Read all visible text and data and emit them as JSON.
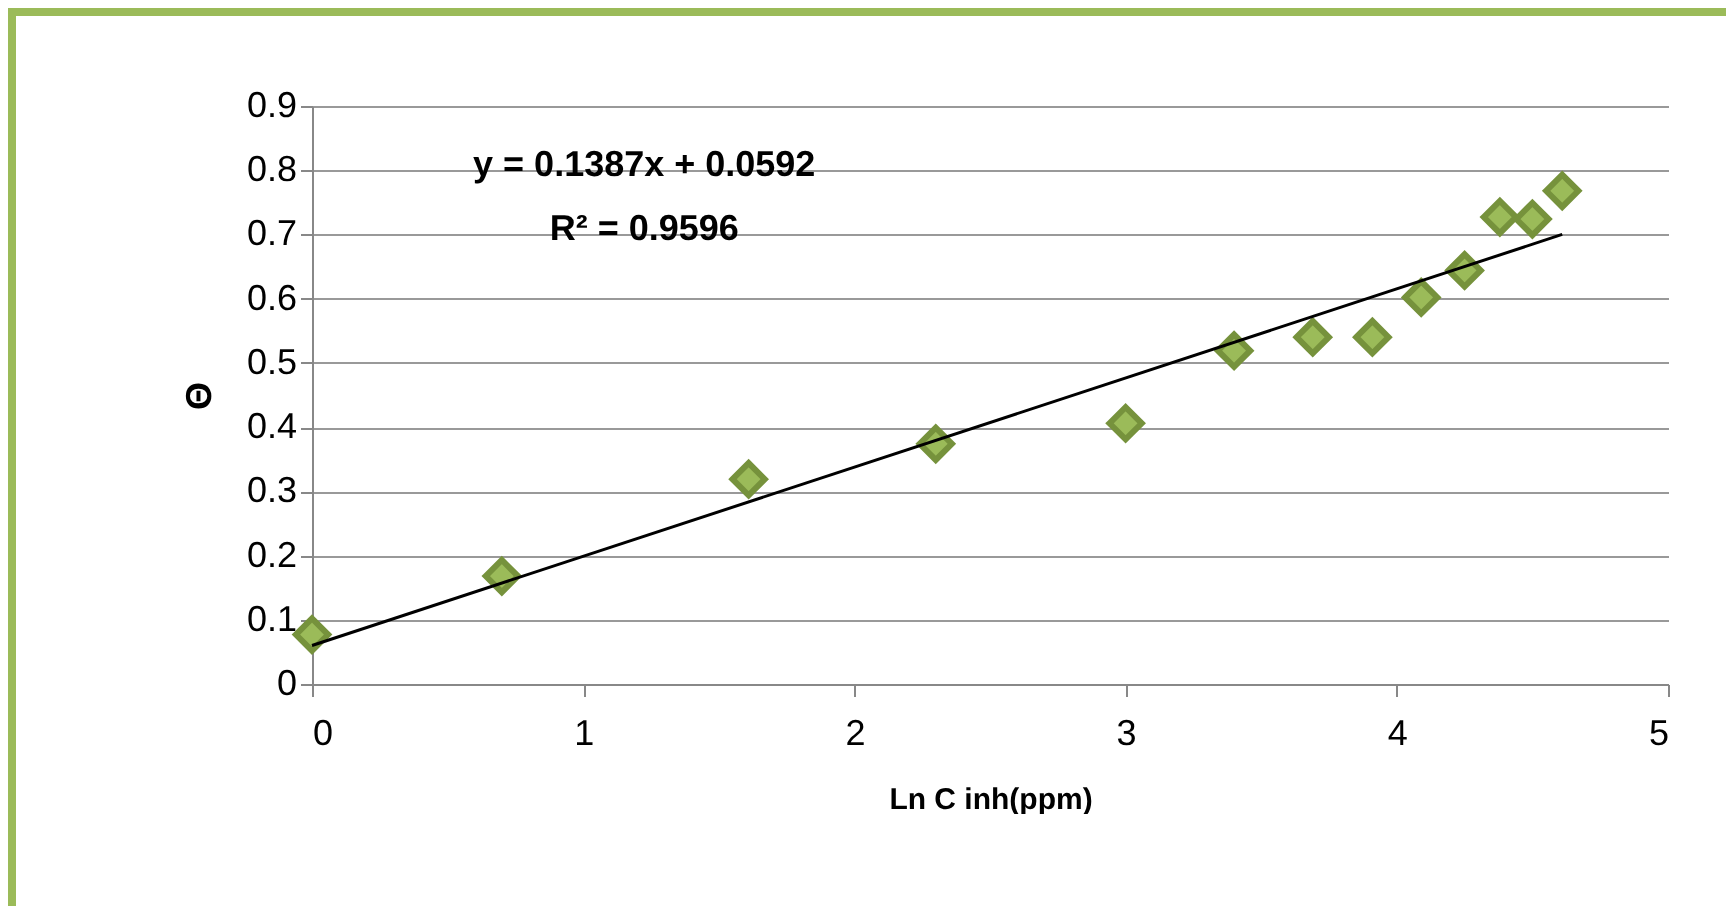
{
  "chart_data": {
    "type": "scatter",
    "xlabel": "Ln  C inh(ppm)",
    "ylabel": "Θ",
    "xlim": [
      0,
      5
    ],
    "xticks": [
      0,
      1,
      2,
      3,
      4,
      5
    ],
    "ylim": [
      0,
      0.9
    ],
    "yticks": [
      0,
      0.1,
      0.2,
      0.3,
      0.4,
      0.5,
      0.6,
      0.7,
      0.8,
      0.9
    ],
    "grid": "y",
    "marker": "diamond",
    "annotations": [
      "y = 0.1387x + 0.0592",
      "R² = 0.9596"
    ],
    "series": [
      {
        "color": "#9bbb59",
        "x": [
          0,
          0.7,
          1.61,
          2.3,
          3.0,
          3.4,
          3.69,
          3.91,
          4.09,
          4.25,
          4.38,
          4.5,
          4.61
        ],
        "values": [
          0.077,
          0.168,
          0.319,
          0.374,
          0.406,
          0.519,
          0.54,
          0.54,
          0.602,
          0.644,
          0.727,
          0.724,
          0.768
        ]
      },
      {
        "type": "line",
        "marker": "none",
        "color": "#000000",
        "x": [
          0,
          4.61
        ],
        "values": [
          0.06,
          0.7
        ]
      }
    ]
  }
}
